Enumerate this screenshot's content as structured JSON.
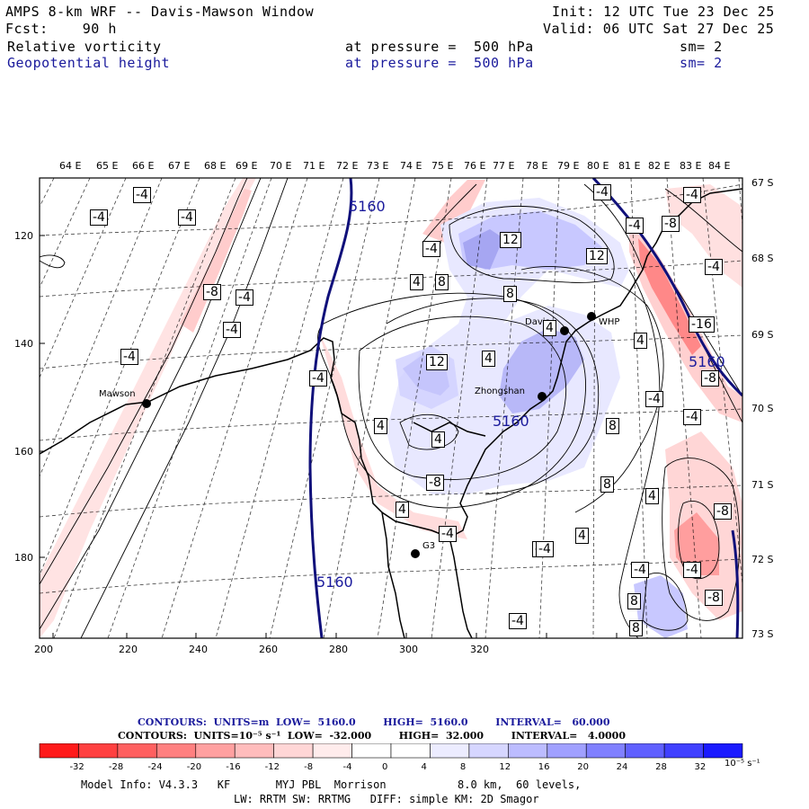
{
  "header": {
    "title": "AMPS 8-km WRF -- Davis-Mawson Window",
    "init": "Init: 12 UTC Tue 23 Dec 25",
    "fcst": "Fcst:    90 h",
    "valid": "Valid: 06 UTC Sat 27 Dec 25",
    "field1": "Relative vorticity",
    "field1_level": "at pressure =  500 hPa",
    "field1_sm": "sm= 2",
    "field2": "Geopotential height",
    "field2_level": "at pressure =  500 hPa",
    "field2_sm": "sm= 2"
  },
  "map": {
    "top_lon_labels": [
      "64 E",
      "65 E",
      "66 E",
      "67 E",
      "68 E",
      "69 E",
      "70 E",
      "71 E",
      "72 E",
      "73 E",
      "74 E",
      "75 E",
      "76 E",
      "77 E",
      "78 E",
      "79 E",
      "80 E",
      "81 E",
      "82 E",
      "83 E",
      "84 E"
    ],
    "right_lat_labels": [
      "67 S",
      "68 S",
      "69 S",
      "70 S",
      "71 S",
      "72 S",
      "73 S"
    ],
    "left_y_ticks": [
      "120",
      "140",
      "160",
      "180"
    ],
    "bottom_x_ticks": [
      "200",
      "220",
      "240",
      "260",
      "280",
      "300",
      "320"
    ],
    "stations": [
      {
        "name": "Mawson"
      },
      {
        "name": "Davis"
      },
      {
        "name": "WHP"
      },
      {
        "name": "Zhongshan"
      },
      {
        "name": "G3"
      }
    ],
    "height_labels": [
      "5160",
      "5160",
      "5160",
      "5160"
    ],
    "vort_labels": [
      "-4",
      "-4",
      "-4",
      "-8",
      "-4",
      "-4",
      "-4",
      "-4",
      "4",
      "8",
      "12",
      "8",
      "-4",
      "4",
      "12",
      "4",
      "12",
      "8",
      "4",
      "4",
      "-8",
      "-4",
      "8",
      "-4",
      "-4",
      "-8",
      "4",
      "8",
      "-4",
      "-8",
      "-4",
      "-16",
      "-8",
      "4",
      "-4",
      "-8",
      "-4",
      "-8",
      "-4",
      "4",
      "8",
      "-4",
      "-4",
      "-4",
      "4"
    ]
  },
  "footer": {
    "contours1": "CONTOURS:  UNITS=m  LOW=  5160.0        HIGH=  5160.0        INTERVAL=   60.000",
    "contours2": "CONTOURS:  UNITS=10⁻⁵ s⁻¹  LOW=  -32.000        HIGH=  32.000        INTERVAL=   4.0000",
    "colorbar_labels": [
      "-32",
      "-28",
      "-24",
      "-20",
      "-16",
      "-12",
      "-8",
      "-4",
      "0",
      "4",
      "8",
      "12",
      "16",
      "20",
      "24",
      "28",
      "32"
    ],
    "colorbar_units": "10⁻⁵ s⁻¹",
    "colorbar_colors": [
      "#ff1a1a",
      "#ff4040",
      "#ff6060",
      "#ff8080",
      "#ffa0a0",
      "#ffbcbc",
      "#ffd6d6",
      "#ffecec",
      "#ffffff",
      "#ffffff",
      "#ececff",
      "#d6d6ff",
      "#bcbcff",
      "#a0a0ff",
      "#8080ff",
      "#6060ff",
      "#4040ff",
      "#1a1aff"
    ],
    "info1": "Model Info: V4.3.3   KF       MYJ PBL  Morrison           8.0 km,  60 levels,",
    "info2": "LW: RRTM SW: RRTMG   DIFF: simple KM: 2D Smagor"
  }
}
